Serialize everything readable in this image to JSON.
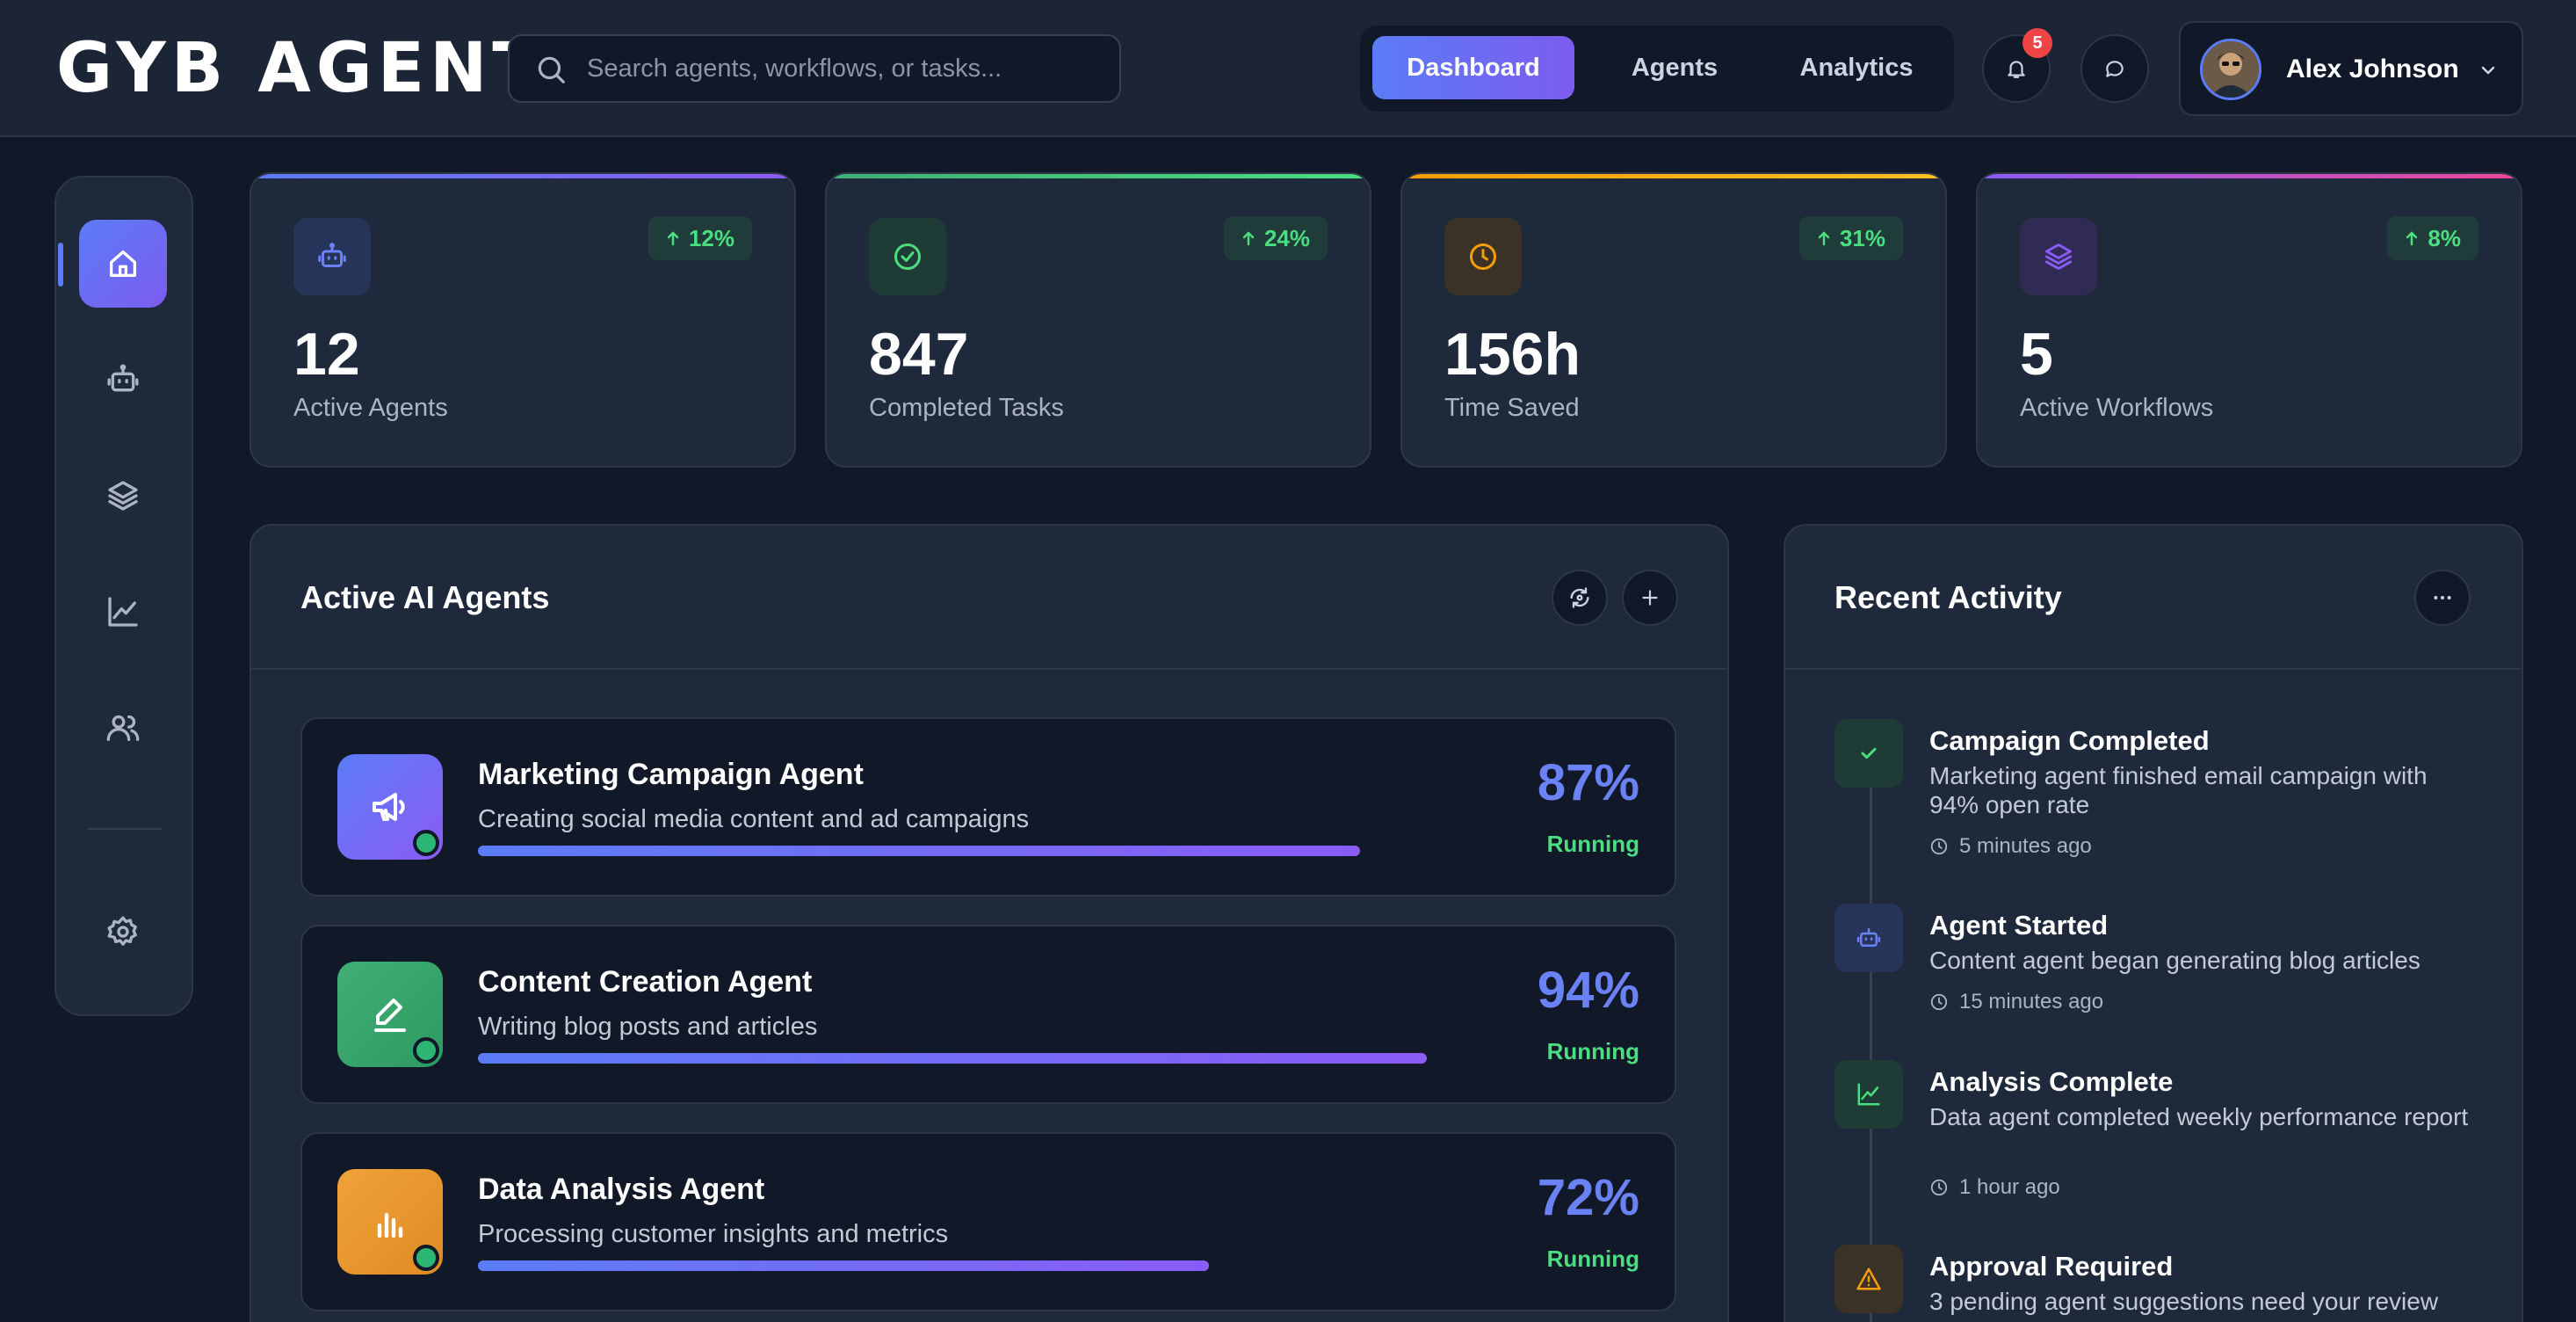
{
  "app": {
    "logo": "GYB AGENT"
  },
  "search": {
    "placeholder": "Search agents, workflows, or tasks..."
  },
  "nav": {
    "tabs": [
      {
        "label": "Dashboard",
        "active": true
      },
      {
        "label": "Agents",
        "active": false
      },
      {
        "label": "Analytics",
        "active": false
      }
    ]
  },
  "notifications": {
    "count": "5",
    "icon": "bell-icon"
  },
  "messages": {
    "icon": "chat-bubble-icon"
  },
  "user": {
    "name": "Alex Johnson"
  },
  "sidebar": {
    "items": [
      {
        "icon": "home-icon",
        "active": true
      },
      {
        "icon": "robot-icon",
        "active": false
      },
      {
        "icon": "layers-icon",
        "active": false
      },
      {
        "icon": "line-chart-icon",
        "active": false
      },
      {
        "icon": "users-icon",
        "active": false
      },
      {
        "icon": "gear-icon",
        "active": false
      }
    ]
  },
  "stats": [
    {
      "value": "12",
      "label": "Active Agents",
      "change": "12%",
      "icon": "robot-icon",
      "accent": "#5b7cf6"
    },
    {
      "value": "847",
      "label": "Completed Tasks",
      "change": "24%",
      "icon": "check-circle-icon",
      "accent": "#4ade80"
    },
    {
      "value": "156h",
      "label": "Time Saved",
      "change": "31%",
      "icon": "clock-icon",
      "accent": "#f59e0b"
    },
    {
      "value": "5",
      "label": "Active Workflows",
      "change": "8%",
      "icon": "layers-icon",
      "accent": "#8b5cf6"
    }
  ],
  "agents_panel": {
    "title": "Active AI Agents",
    "agents": [
      {
        "name": "Marketing Campaign Agent",
        "description": "Creating social media content and ad campaigns",
        "percent": "87%",
        "progress": 0.87,
        "status": "Running",
        "icon": "megaphone-icon",
        "color": "#6b6ef5"
      },
      {
        "name": "Content Creation Agent",
        "description": "Writing blog posts and articles",
        "percent": "94%",
        "progress": 0.94,
        "status": "Running",
        "icon": "pen-icon",
        "color": "#3fae75"
      },
      {
        "name": "Data Analysis Agent",
        "description": "Processing customer insights and metrics",
        "percent": "72%",
        "progress": 0.72,
        "status": "Running",
        "icon": "bar-chart-icon",
        "color": "#e9962b"
      }
    ]
  },
  "activity_panel": {
    "title": "Recent Activity",
    "items": [
      {
        "title": "Campaign Completed",
        "description": "Marketing agent finished email campaign with 94% open rate",
        "time": "5 minutes ago",
        "icon": "check-icon"
      },
      {
        "title": "Agent Started",
        "description": "Content agent began generating blog articles",
        "time": "15 minutes ago",
        "icon": "robot-icon"
      },
      {
        "title": "Analysis Complete",
        "description": "Data agent completed weekly performance report",
        "time": "1 hour ago",
        "icon": "line-chart-icon"
      },
      {
        "title": "Approval Required",
        "description": "3 pending agent suggestions need your review",
        "time": "",
        "icon": "warning-icon"
      }
    ]
  }
}
